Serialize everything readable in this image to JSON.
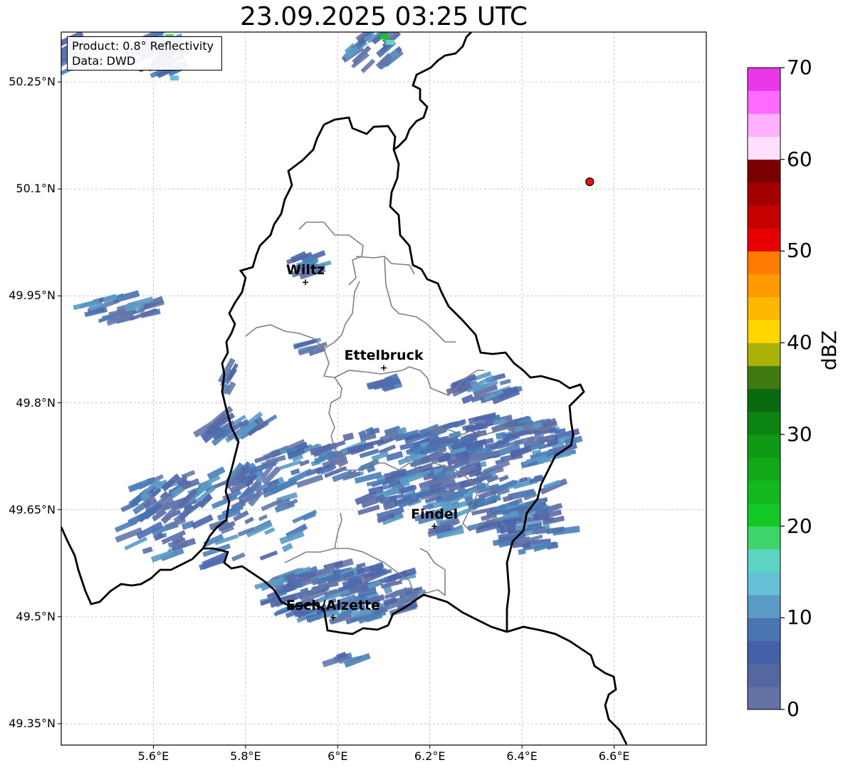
{
  "title": "23.09.2025 03:25 UTC",
  "info": {
    "product": "Product: 0.8° Reflectivity",
    "data": "Data: DWD"
  },
  "map": {
    "lon_range": [
      5.4,
      6.8
    ],
    "lat_range": [
      49.32,
      50.32
    ],
    "grid": true,
    "lat_ticks": [
      {
        "value": 50.25,
        "label": "50.25°N"
      },
      {
        "value": 50.1,
        "label": "50.1°N"
      },
      {
        "value": 49.95,
        "label": "49.95°N"
      },
      {
        "value": 49.8,
        "label": "49.8°N"
      },
      {
        "value": 49.65,
        "label": "49.65°N"
      },
      {
        "value": 49.5,
        "label": "49.5°N"
      },
      {
        "value": 49.35,
        "label": "49.35°N"
      }
    ],
    "lon_ticks": [
      {
        "value": 5.6,
        "label": "5.6°E"
      },
      {
        "value": 5.8,
        "label": "5.8°E"
      },
      {
        "value": 6.0,
        "label": "6°E"
      },
      {
        "value": 6.2,
        "label": "6.2°E"
      },
      {
        "value": 6.4,
        "label": "6.4°E"
      },
      {
        "value": 6.6,
        "label": "6.6°E"
      }
    ],
    "cities": [
      {
        "name": "Wiltz",
        "lon": 5.93,
        "lat": 49.969
      },
      {
        "name": "Ettelbruck",
        "lon": 6.1,
        "lat": 49.849
      },
      {
        "name": "Findel",
        "lon": 6.21,
        "lat": 49.627
      },
      {
        "name": "Esch/Alzette",
        "lon": 5.99,
        "lat": 49.499
      }
    ],
    "radar_site": {
      "lon": 6.547,
      "lat": 50.11,
      "color": "#ee1111"
    },
    "border_color": "#000000",
    "canton_color": "#808080"
  },
  "colorbar": {
    "label": "dBZ",
    "min": 0,
    "max": 70,
    "step": 2.5,
    "ticks": [
      "0",
      "10",
      "20",
      "30",
      "40",
      "50",
      "60",
      "70"
    ],
    "colors": [
      "#6472a6",
      "#5467a0",
      "#4460a6",
      "#4a74b0",
      "#5b9ac4",
      "#66c0d8",
      "#5dd4c2",
      "#3dd46a",
      "#12c824",
      "#14b81e",
      "#12a818",
      "#0f9814",
      "#0c8412",
      "#0a6a10",
      "#3f7a10",
      "#aab20a",
      "#ffd600",
      "#ffb800",
      "#ff9a00",
      "#ff7c00",
      "#e60000",
      "#c40000",
      "#a30000",
      "#7a0000",
      "#ffe0ff",
      "#ffb0ff",
      "#ff6aff",
      "#e838e8"
    ]
  }
}
